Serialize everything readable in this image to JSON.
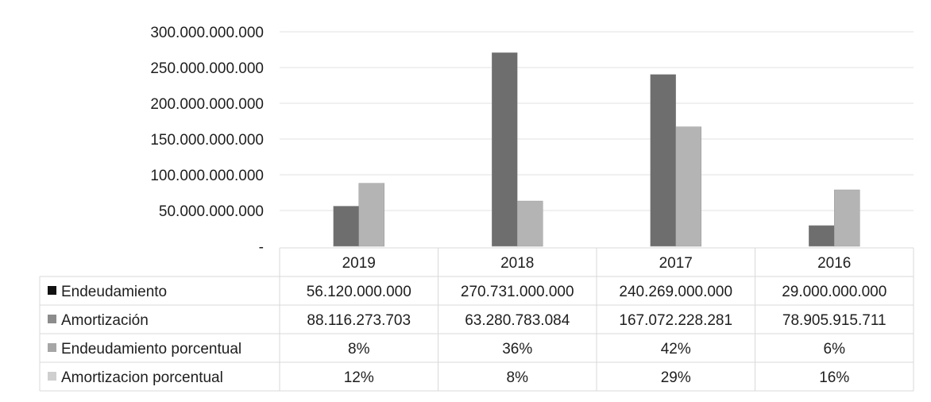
{
  "chart_data": {
    "type": "bar",
    "title": "",
    "xlabel": "",
    "ylabel": "",
    "ylim": [
      0,
      300000000000
    ],
    "yticks": [
      0,
      50000000000,
      100000000000,
      150000000000,
      200000000000,
      250000000000,
      300000000000
    ],
    "ytick_labels": [
      "-",
      "50.000.000.000",
      "100.000.000.000",
      "150.000.000.000",
      "200.000.000.000",
      "250.000.000.000",
      "300.000.000.000"
    ],
    "grid": true,
    "legend": "data-table-left",
    "categories": [
      "2019",
      "2018",
      "2017",
      "2016"
    ],
    "series": [
      {
        "name": "Endeudamiento",
        "color": "#6e6e6e",
        "plotted": true,
        "values": [
          56120000000,
          270731000000,
          240269000000,
          29000000000
        ],
        "labels": [
          "56.120.000.000",
          "270.731.000.000",
          "240.269.000.000",
          "29.000.000.000"
        ]
      },
      {
        "name": "Amortización",
        "color": "#b4b4b4",
        "plotted": true,
        "values": [
          88116273703,
          63280783084,
          167072228281,
          78905915711
        ],
        "labels": [
          "88.116.273.703",
          "63.280.783.084",
          "167.072.228.281",
          "78.905.915.711"
        ]
      },
      {
        "name": "Endeudamiento porcentual",
        "color": "#a6a6a6",
        "plotted": false,
        "values": [
          8,
          36,
          42,
          6
        ],
        "labels": [
          "8%",
          "36%",
          "42%",
          "6%"
        ]
      },
      {
        "name": "Amortizacion porcentual",
        "color": "#cfcfcf",
        "plotted": false,
        "values": [
          12,
          8,
          29,
          16
        ],
        "labels": [
          "12%",
          "8%",
          "29%",
          "16%"
        ]
      }
    ],
    "legend_key_colors": [
      "#111111",
      "#8c8c8c",
      "#a6a6a6",
      "#cfcfcf"
    ]
  }
}
